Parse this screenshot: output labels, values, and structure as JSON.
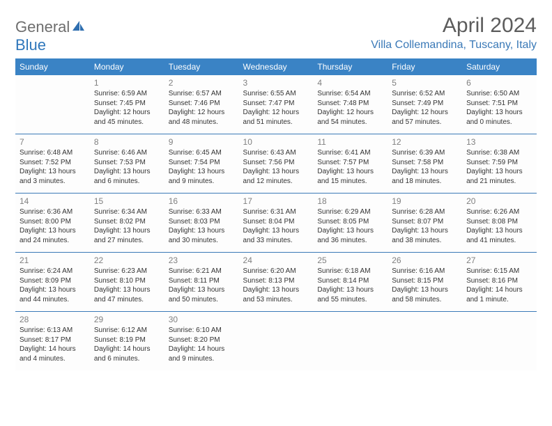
{
  "brand": {
    "part1": "General",
    "part2": "Blue"
  },
  "title": "April 2024",
  "location": "Villa Collemandina, Tuscany, Italy",
  "colors": {
    "header_bg": "#3a83c5",
    "header_text": "#ffffff",
    "location_color": "#3a79b7",
    "title_color": "#5c5c5c",
    "daynum_color": "#808080",
    "body_text": "#333333",
    "row_border": "#3a79b7",
    "logo_gray": "#6e6e6e",
    "logo_blue": "#2f77bb"
  },
  "typography": {
    "title_fontsize": 30,
    "location_fontsize": 16,
    "weekday_fontsize": 12,
    "daynum_fontsize": 12,
    "body_fontsize": 10
  },
  "weekdays": [
    "Sunday",
    "Monday",
    "Tuesday",
    "Wednesday",
    "Thursday",
    "Friday",
    "Saturday"
  ],
  "layout": {
    "columns": 7,
    "rows": 5,
    "first_weekday_offset": 1
  },
  "days": {
    "1": {
      "sunrise": "6:59 AM",
      "sunset": "7:45 PM",
      "daylight": "12 hours and 45 minutes."
    },
    "2": {
      "sunrise": "6:57 AM",
      "sunset": "7:46 PM",
      "daylight": "12 hours and 48 minutes."
    },
    "3": {
      "sunrise": "6:55 AM",
      "sunset": "7:47 PM",
      "daylight": "12 hours and 51 minutes."
    },
    "4": {
      "sunrise": "6:54 AM",
      "sunset": "7:48 PM",
      "daylight": "12 hours and 54 minutes."
    },
    "5": {
      "sunrise": "6:52 AM",
      "sunset": "7:49 PM",
      "daylight": "12 hours and 57 minutes."
    },
    "6": {
      "sunrise": "6:50 AM",
      "sunset": "7:51 PM",
      "daylight": "13 hours and 0 minutes."
    },
    "7": {
      "sunrise": "6:48 AM",
      "sunset": "7:52 PM",
      "daylight": "13 hours and 3 minutes."
    },
    "8": {
      "sunrise": "6:46 AM",
      "sunset": "7:53 PM",
      "daylight": "13 hours and 6 minutes."
    },
    "9": {
      "sunrise": "6:45 AM",
      "sunset": "7:54 PM",
      "daylight": "13 hours and 9 minutes."
    },
    "10": {
      "sunrise": "6:43 AM",
      "sunset": "7:56 PM",
      "daylight": "13 hours and 12 minutes."
    },
    "11": {
      "sunrise": "6:41 AM",
      "sunset": "7:57 PM",
      "daylight": "13 hours and 15 minutes."
    },
    "12": {
      "sunrise": "6:39 AM",
      "sunset": "7:58 PM",
      "daylight": "13 hours and 18 minutes."
    },
    "13": {
      "sunrise": "6:38 AM",
      "sunset": "7:59 PM",
      "daylight": "13 hours and 21 minutes."
    },
    "14": {
      "sunrise": "6:36 AM",
      "sunset": "8:00 PM",
      "daylight": "13 hours and 24 minutes."
    },
    "15": {
      "sunrise": "6:34 AM",
      "sunset": "8:02 PM",
      "daylight": "13 hours and 27 minutes."
    },
    "16": {
      "sunrise": "6:33 AM",
      "sunset": "8:03 PM",
      "daylight": "13 hours and 30 minutes."
    },
    "17": {
      "sunrise": "6:31 AM",
      "sunset": "8:04 PM",
      "daylight": "13 hours and 33 minutes."
    },
    "18": {
      "sunrise": "6:29 AM",
      "sunset": "8:05 PM",
      "daylight": "13 hours and 36 minutes."
    },
    "19": {
      "sunrise": "6:28 AM",
      "sunset": "8:07 PM",
      "daylight": "13 hours and 38 minutes."
    },
    "20": {
      "sunrise": "6:26 AM",
      "sunset": "8:08 PM",
      "daylight": "13 hours and 41 minutes."
    },
    "21": {
      "sunrise": "6:24 AM",
      "sunset": "8:09 PM",
      "daylight": "13 hours and 44 minutes."
    },
    "22": {
      "sunrise": "6:23 AM",
      "sunset": "8:10 PM",
      "daylight": "13 hours and 47 minutes."
    },
    "23": {
      "sunrise": "6:21 AM",
      "sunset": "8:11 PM",
      "daylight": "13 hours and 50 minutes."
    },
    "24": {
      "sunrise": "6:20 AM",
      "sunset": "8:13 PM",
      "daylight": "13 hours and 53 minutes."
    },
    "25": {
      "sunrise": "6:18 AM",
      "sunset": "8:14 PM",
      "daylight": "13 hours and 55 minutes."
    },
    "26": {
      "sunrise": "6:16 AM",
      "sunset": "8:15 PM",
      "daylight": "13 hours and 58 minutes."
    },
    "27": {
      "sunrise": "6:15 AM",
      "sunset": "8:16 PM",
      "daylight": "14 hours and 1 minute."
    },
    "28": {
      "sunrise": "6:13 AM",
      "sunset": "8:17 PM",
      "daylight": "14 hours and 4 minutes."
    },
    "29": {
      "sunrise": "6:12 AM",
      "sunset": "8:19 PM",
      "daylight": "14 hours and 6 minutes."
    },
    "30": {
      "sunrise": "6:10 AM",
      "sunset": "8:20 PM",
      "daylight": "14 hours and 9 minutes."
    }
  },
  "labels": {
    "sunrise": "Sunrise:",
    "sunset": "Sunset:",
    "daylight": "Daylight:"
  }
}
